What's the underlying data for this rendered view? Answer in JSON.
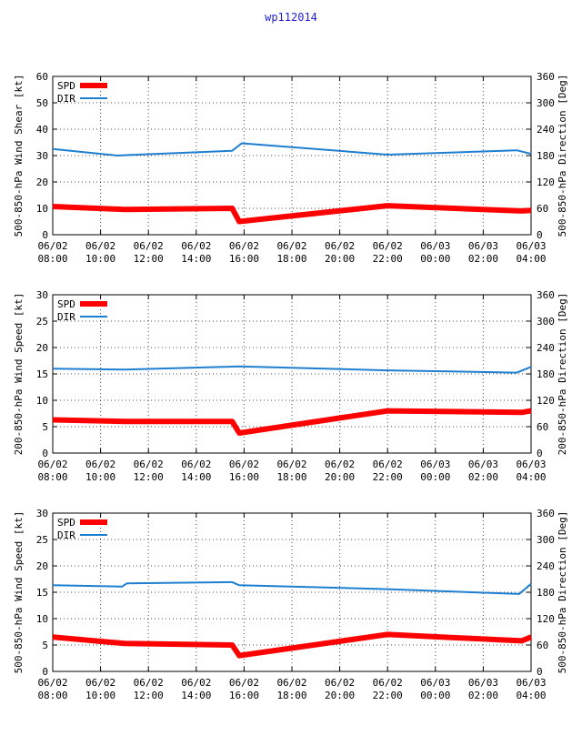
{
  "title": "wp112014",
  "colors": {
    "spd": "#ff0000",
    "dir": "#1e7fd0",
    "axis": "#000000",
    "grid": "#000000",
    "title": "#1f1fd6"
  },
  "x_ticks": [
    {
      "top": "06/02",
      "bottom": "08:00"
    },
    {
      "top": "06/02",
      "bottom": "10:00"
    },
    {
      "top": "06/02",
      "bottom": "12:00"
    },
    {
      "top": "06/02",
      "bottom": "14:00"
    },
    {
      "top": "06/02",
      "bottom": "16:00"
    },
    {
      "top": "06/02",
      "bottom": "18:00"
    },
    {
      "top": "06/02",
      "bottom": "20:00"
    },
    {
      "top": "06/02",
      "bottom": "22:00"
    },
    {
      "top": "06/03",
      "bottom": "00:00"
    },
    {
      "top": "06/03",
      "bottom": "02:00"
    },
    {
      "top": "06/03",
      "bottom": "04:00"
    }
  ],
  "chart_data": [
    {
      "type": "line",
      "ylabel": "500-850-hPa Wind Shear [kt]",
      "y2label": "500-850-hPa Direction [Deg]",
      "xlim": [
        0,
        20
      ],
      "ylim": [
        0,
        60
      ],
      "y2lim": [
        0,
        360
      ],
      "yticks": [
        0,
        10,
        20,
        30,
        40,
        50,
        60
      ],
      "y2ticks": [
        0,
        60,
        120,
        180,
        240,
        300,
        360
      ],
      "legend": [
        {
          "label": "SPD"
        },
        {
          "label": "DIR"
        }
      ],
      "series": [
        {
          "name": "SPD",
          "axis": "left",
          "x": [
            0,
            3,
            7.5,
            7.8,
            14,
            19.6,
            20
          ],
          "values": [
            10.7,
            9.6,
            10.0,
            5.0,
            11.0,
            9.0,
            9.2
          ]
        },
        {
          "name": "DIR",
          "axis": "right",
          "x": [
            0,
            2.7,
            3.1,
            7.5,
            7.9,
            14,
            19.4,
            20
          ],
          "values": [
            195,
            180,
            181,
            191,
            208,
            182,
            192,
            184
          ]
        }
      ]
    },
    {
      "type": "line",
      "ylabel": "200-850-hPa Wind Speed [kt]",
      "y2label": "200-850-hPa Direction [Deg]",
      "xlim": [
        0,
        20
      ],
      "ylim": [
        0,
        30
      ],
      "y2lim": [
        0,
        360
      ],
      "yticks": [
        0,
        5,
        10,
        15,
        20,
        25,
        30
      ],
      "y2ticks": [
        0,
        60,
        120,
        180,
        240,
        300,
        360
      ],
      "legend": [
        {
          "label": "SPD"
        },
        {
          "label": "DIR"
        }
      ],
      "series": [
        {
          "name": "SPD",
          "axis": "left",
          "x": [
            0,
            3,
            7.5,
            7.8,
            14,
            19.6,
            20
          ],
          "values": [
            6.3,
            6.0,
            6.0,
            3.8,
            8.0,
            7.7,
            8.0
          ]
        },
        {
          "name": "DIR",
          "axis": "right",
          "x": [
            0,
            3,
            7.8,
            14,
            19.4,
            20
          ],
          "values": [
            192,
            190,
            197,
            188,
            183,
            196
          ]
        }
      ]
    },
    {
      "type": "line",
      "ylabel": "500-850-hPa Wind Speed [kt]",
      "y2label": "500-850-hPa Direction [Deg]",
      "xlim": [
        0,
        20
      ],
      "ylim": [
        0,
        30
      ],
      "y2lim": [
        0,
        360
      ],
      "yticks": [
        0,
        5,
        10,
        15,
        20,
        25,
        30
      ],
      "y2ticks": [
        0,
        60,
        120,
        180,
        240,
        300,
        360
      ],
      "legend": [
        {
          "label": "SPD"
        },
        {
          "label": "DIR"
        }
      ],
      "series": [
        {
          "name": "SPD",
          "axis": "left",
          "x": [
            0,
            3,
            7.5,
            7.8,
            14,
            19.6,
            20
          ],
          "values": [
            6.5,
            5.3,
            5.0,
            3.0,
            7.0,
            5.8,
            6.5
          ]
        },
        {
          "name": "DIR",
          "axis": "right",
          "x": [
            0,
            2.9,
            3.1,
            7.5,
            7.8,
            14,
            19.5,
            20
          ],
          "values": [
            196,
            193,
            200,
            203,
            196,
            187,
            176,
            199
          ]
        }
      ]
    }
  ]
}
